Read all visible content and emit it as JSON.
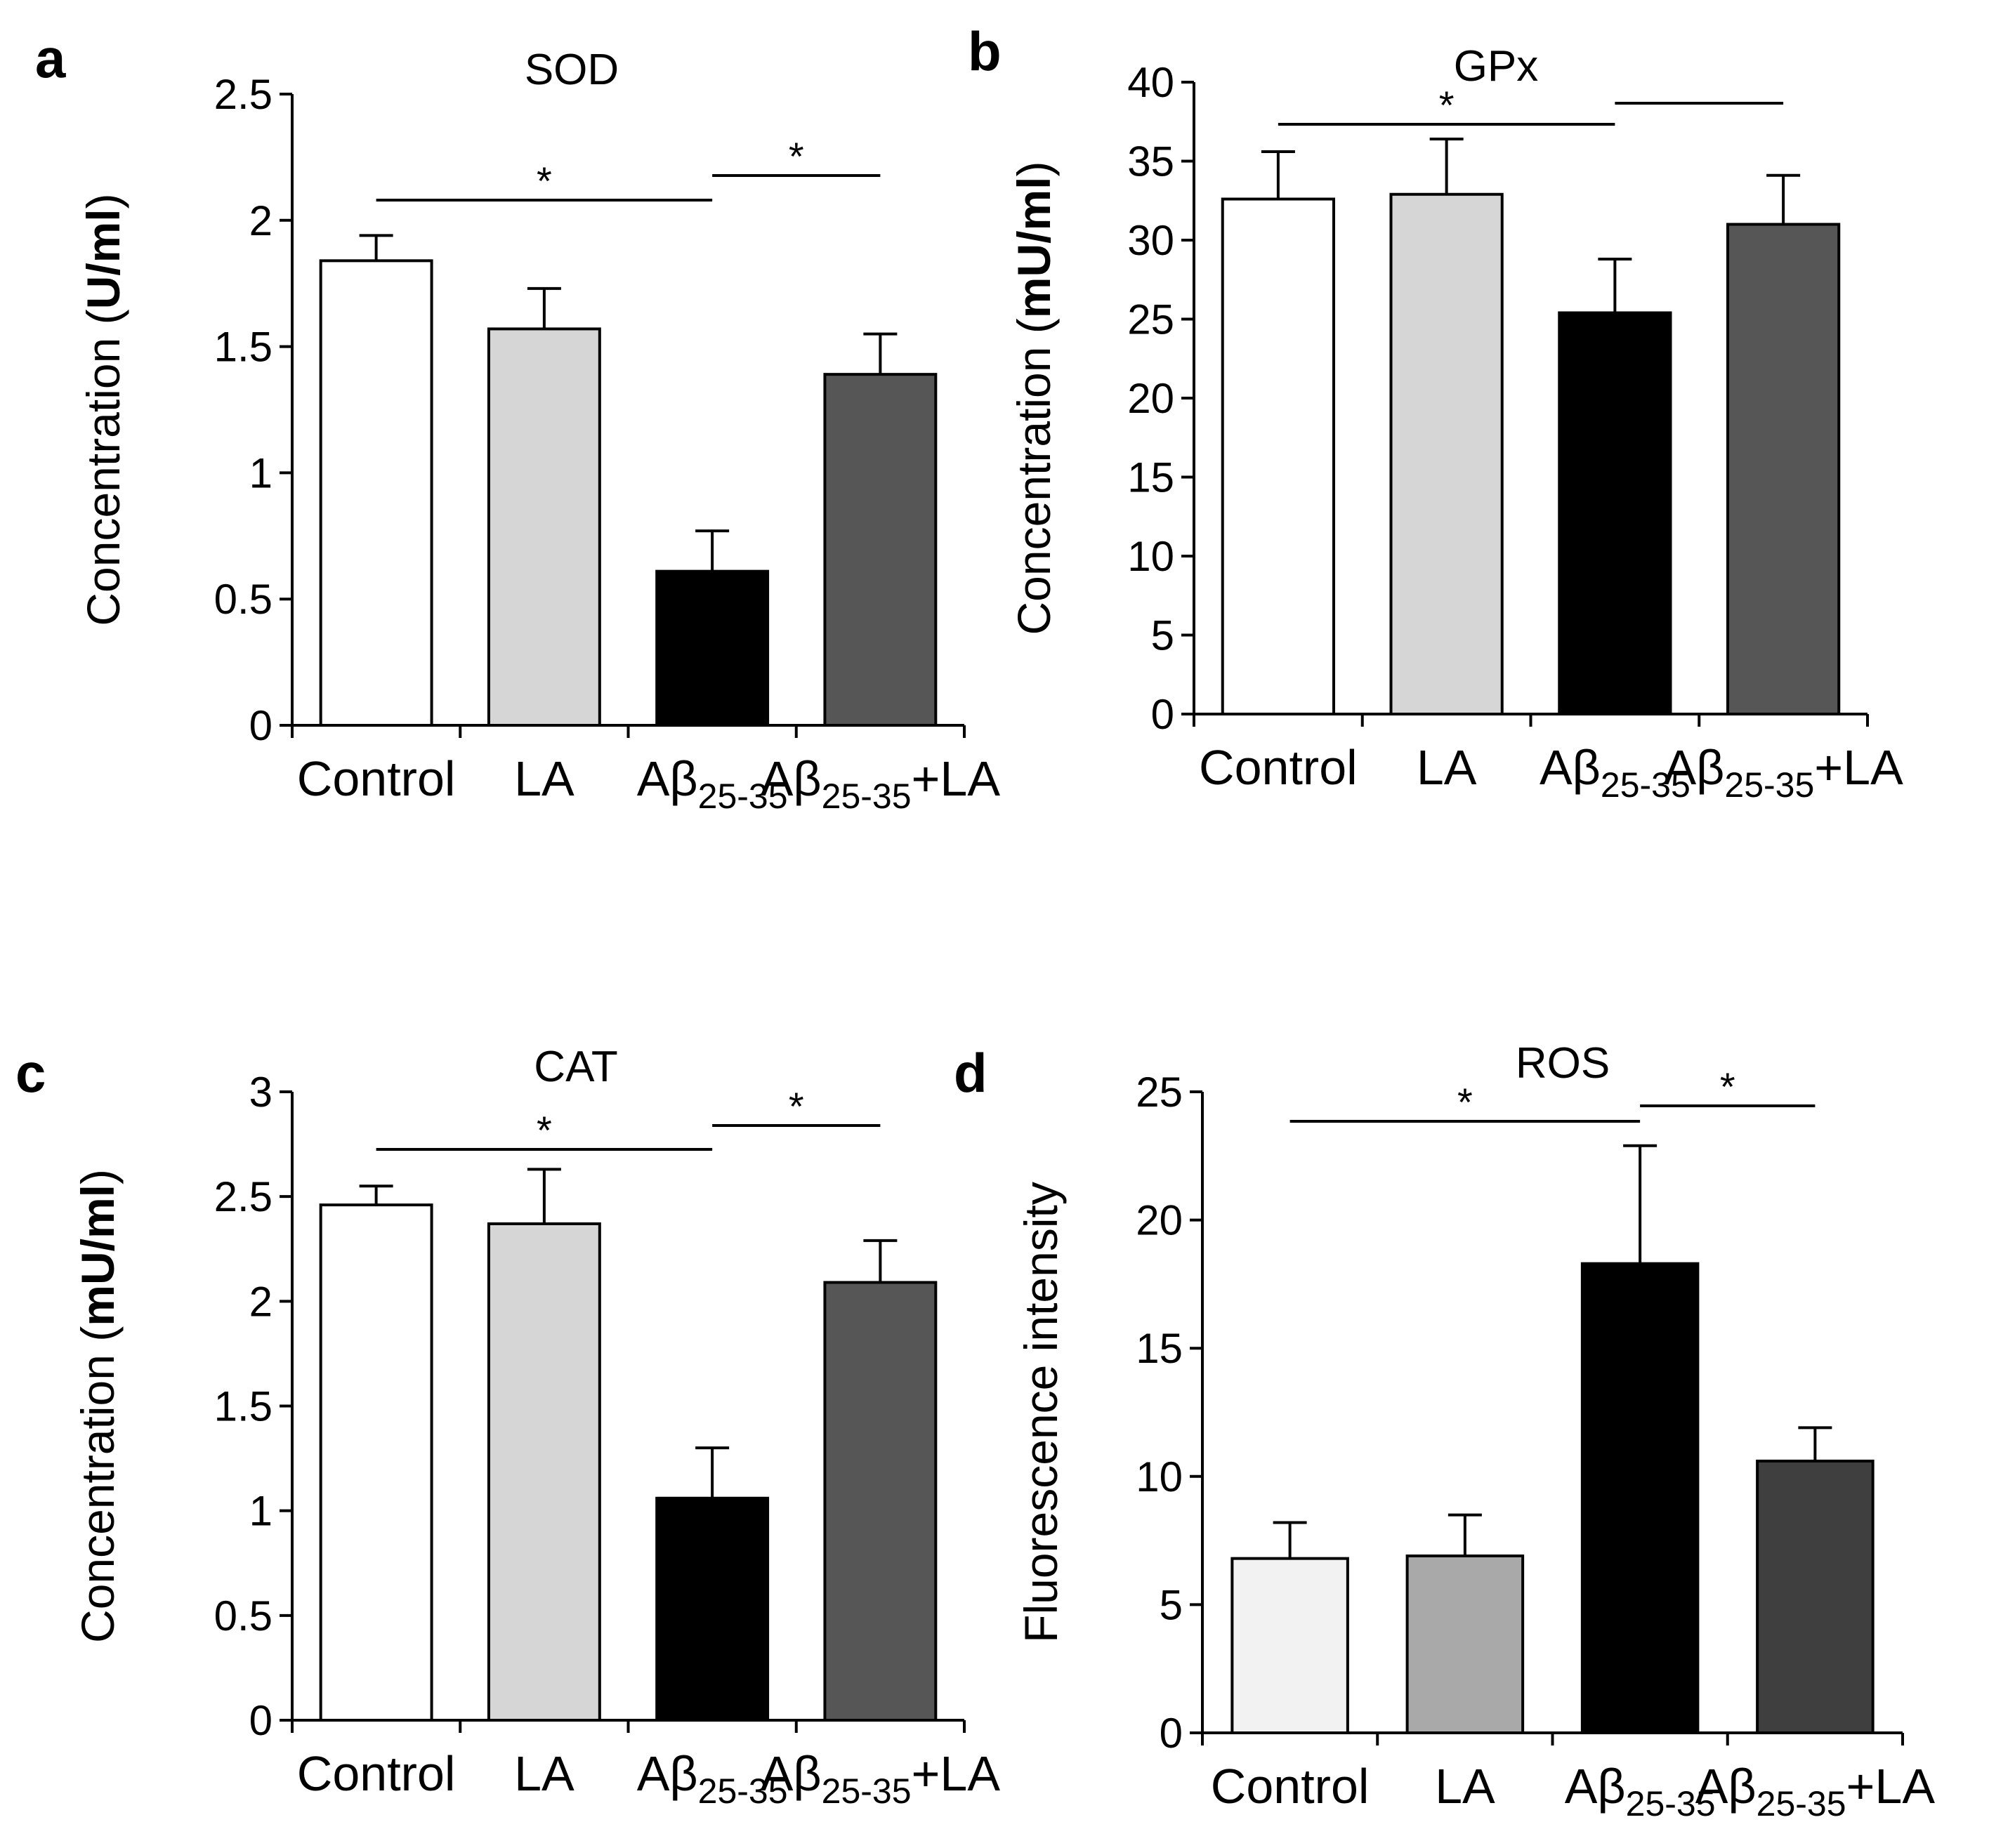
{
  "chart_data": [
    {
      "panel": "a",
      "type": "bar",
      "title": "SOD",
      "ylabel": {
        "prefix": "Concentration (",
        "unit": "U/ml",
        "suffix": ")"
      },
      "ylim": [
        0,
        2.5
      ],
      "yticks": [
        "0",
        "0.5",
        "1",
        "1.5",
        "2",
        "2.5"
      ],
      "categories": [
        {
          "base": "Control"
        },
        {
          "base": "LA"
        },
        {
          "base": "Aβ",
          "sub": "25-35"
        },
        {
          "base": "Aβ",
          "sub": "25-35",
          "tail": "+LA"
        }
      ],
      "values": [
        1.84,
        1.57,
        0.61,
        1.39
      ],
      "errors": [
        0.1,
        0.16,
        0.16,
        0.16
      ],
      "colors": [
        "#ffffff",
        "#d6d6d6",
        "#000000",
        "#565656"
      ],
      "significance": [
        {
          "from": 0,
          "to": 2,
          "label": "*"
        },
        {
          "from": 2,
          "to": 3,
          "label": "*"
        }
      ]
    },
    {
      "panel": "b",
      "type": "bar",
      "title": "GPx",
      "ylabel": {
        "prefix": "Concentration (",
        "unit": "mU/ml",
        "suffix": ")"
      },
      "ylim": [
        0,
        40
      ],
      "yticks": [
        "0",
        "5",
        "10",
        "15",
        "20",
        "25",
        "30",
        "35",
        "40"
      ],
      "categories": [
        {
          "base": "Control"
        },
        {
          "base": "LA"
        },
        {
          "base": "Aβ",
          "sub": "25-35"
        },
        {
          "base": "Aβ",
          "sub": "25-35",
          "tail": "+LA"
        }
      ],
      "values": [
        32.6,
        32.9,
        25.4,
        31.0
      ],
      "errors": [
        3.0,
        3.5,
        3.4,
        3.1
      ],
      "colors": [
        "#ffffff",
        "#d6d6d6",
        "#000000",
        "#565656"
      ],
      "significance": [
        {
          "from": 0,
          "to": 2,
          "label": "*"
        },
        {
          "from": 2,
          "to": 3,
          "label": ""
        }
      ]
    },
    {
      "panel": "c",
      "type": "bar",
      "title": "CAT",
      "ylabel": {
        "prefix": "Concentration (",
        "unit": "mU/ml",
        "suffix": ")"
      },
      "ylim": [
        0,
        3
      ],
      "yticks": [
        "0",
        "0.5",
        "1",
        "1.5",
        "2",
        "2.5",
        "3"
      ],
      "categories": [
        {
          "base": "Control"
        },
        {
          "base": "LA"
        },
        {
          "base": "Aβ",
          "sub": "25-35"
        },
        {
          "base": "Aβ",
          "sub": "25-35",
          "tail": "+LA"
        }
      ],
      "values": [
        2.46,
        2.37,
        1.06,
        2.09
      ],
      "errors": [
        0.09,
        0.26,
        0.24,
        0.2
      ],
      "colors": [
        "#ffffff",
        "#d6d6d6",
        "#000000",
        "#565656"
      ],
      "significance": [
        {
          "from": 0,
          "to": 2,
          "label": "*"
        },
        {
          "from": 2,
          "to": 3,
          "label": "*"
        }
      ]
    },
    {
      "panel": "d",
      "type": "bar",
      "title": "ROS",
      "ylabel": {
        "prefix": "Fluorescence intensity",
        "unit": "",
        "suffix": ""
      },
      "ylim": [
        0,
        25
      ],
      "yticks": [
        "0",
        "5",
        "10",
        "15",
        "20",
        "25"
      ],
      "categories": [
        {
          "base": "Control"
        },
        {
          "base": "LA"
        },
        {
          "base": "Aβ",
          "sub": "25-35"
        },
        {
          "base": "Aβ",
          "sub": "25-35",
          "tail": "+LA"
        }
      ],
      "values": [
        6.8,
        6.9,
        18.3,
        10.6
      ],
      "errors": [
        1.4,
        1.6,
        4.6,
        1.3
      ],
      "colors": [
        "#f2f2f2",
        "#a9a9a9",
        "#000000",
        "#3f3f3f"
      ],
      "significance": [
        {
          "from": 0,
          "to": 2,
          "label": "*"
        },
        {
          "from": 2,
          "to": 3,
          "label": "*"
        }
      ]
    }
  ]
}
